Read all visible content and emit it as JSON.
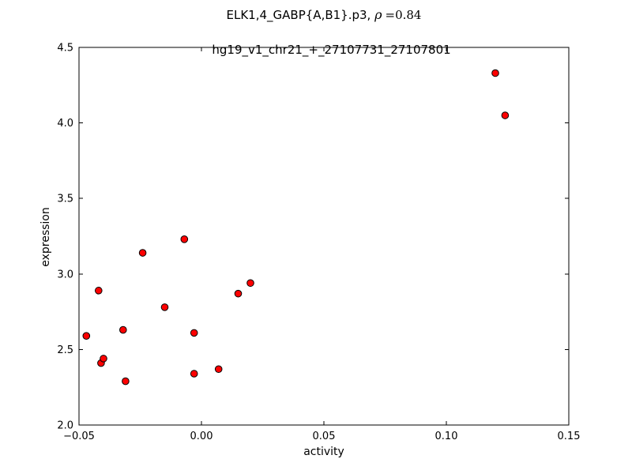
{
  "chart_data": {
    "type": "scatter",
    "title": "ELK1,4_GABP{A,B1}.p3, ρ =0.84",
    "title_parts": {
      "prefix": "ELK1,4_GABP{A,B1}.p3, ",
      "rho": "ρ",
      "eq": "=0.84"
    },
    "subtitle": "hg19_v1_chr21_+_27107731_27107801",
    "xlabel": "activity",
    "ylabel": "expression",
    "xlim": [
      -0.05,
      0.15
    ],
    "ylim": [
      2.0,
      4.5
    ],
    "grid": false,
    "legend": null,
    "axis_color": "#000000",
    "background_color": "#ffffff",
    "xticks": [
      {
        "value": -0.05,
        "label": "−0.05"
      },
      {
        "value": 0.0,
        "label": "0.00"
      },
      {
        "value": 0.05,
        "label": "0.05"
      },
      {
        "value": 0.1,
        "label": "0.10"
      },
      {
        "value": 0.15,
        "label": "0.15"
      }
    ],
    "yticks": [
      {
        "value": 2.0,
        "label": "2.0"
      },
      {
        "value": 2.5,
        "label": "2.5"
      },
      {
        "value": 3.0,
        "label": "3.0"
      },
      {
        "value": 3.5,
        "label": "3.5"
      },
      {
        "value": 4.0,
        "label": "4.0"
      },
      {
        "value": 4.5,
        "label": "4.5"
      }
    ],
    "marker": {
      "shape": "circle",
      "fill": "#ff0000",
      "edge": "#000000",
      "radius_px": 4.3
    },
    "points": [
      [
        -0.047,
        2.59
      ],
      [
        -0.042,
        2.89
      ],
      [
        -0.041,
        2.41
      ],
      [
        -0.04,
        2.44
      ],
      [
        -0.032,
        2.63
      ],
      [
        -0.031,
        2.29
      ],
      [
        -0.024,
        3.14
      ],
      [
        -0.015,
        2.78
      ],
      [
        -0.007,
        3.23
      ],
      [
        -0.003,
        2.61
      ],
      [
        -0.003,
        2.34
      ],
      [
        0.007,
        2.37
      ],
      [
        0.015,
        2.87
      ],
      [
        0.02,
        2.94
      ],
      [
        0.12,
        4.33
      ],
      [
        0.124,
        4.05
      ]
    ]
  }
}
